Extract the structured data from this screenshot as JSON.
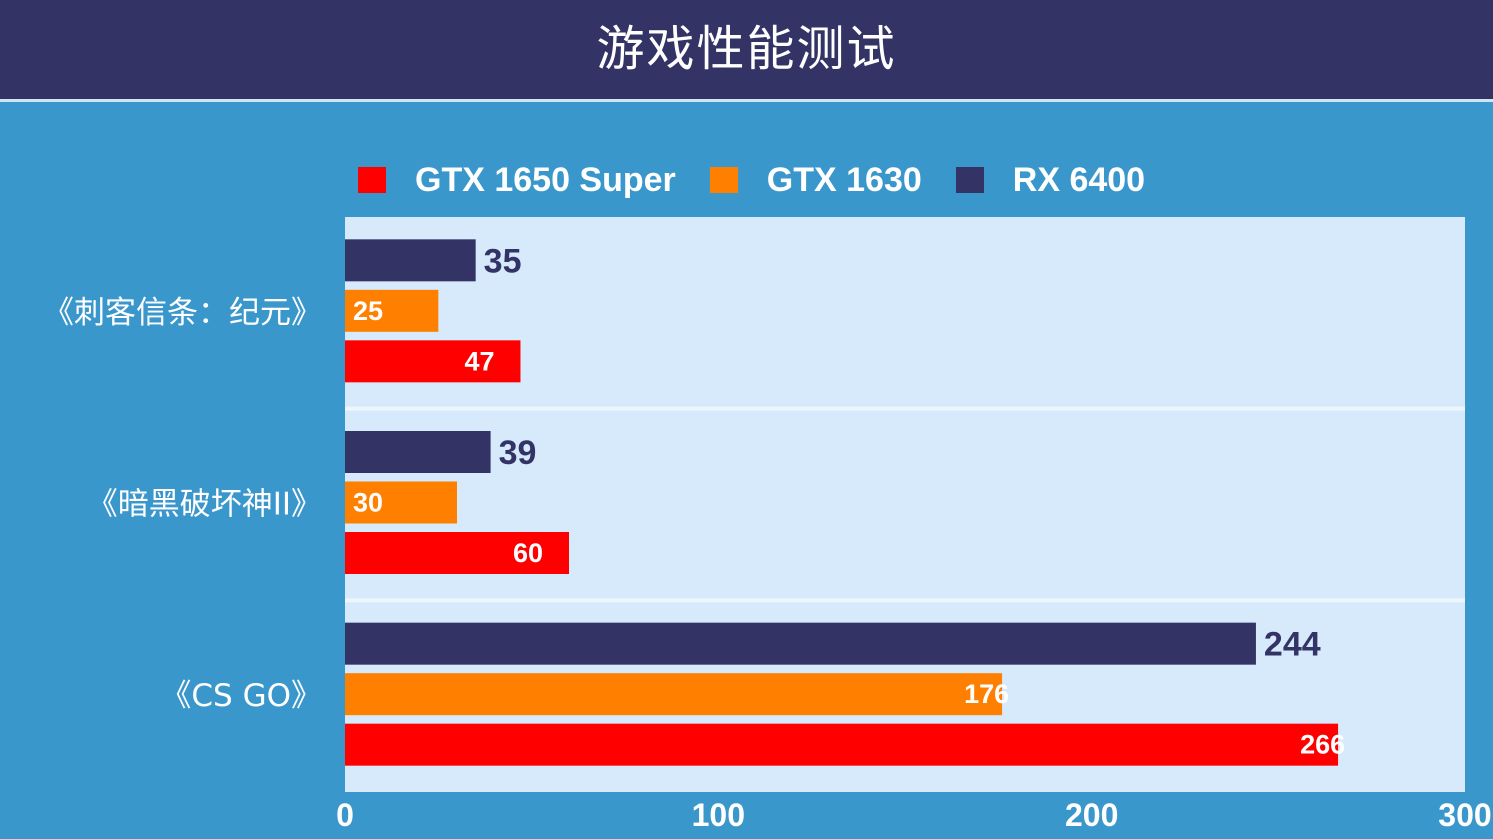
{
  "header": {
    "title": "游戏性能测试"
  },
  "colors": {
    "GTX 1650 Super": "#ff0000",
    "GTX 1630": "#ff8000",
    "RX 6400": "#333366"
  },
  "chart_data": {
    "type": "bar",
    "orientation": "horizontal",
    "categories": [
      "《刺客信条：纪元》",
      "《暗黑破坏神II》",
      "《CS GO》"
    ],
    "series": [
      {
        "name": "GTX 1650 Super",
        "values": [
          47,
          60,
          266
        ]
      },
      {
        "name": "GTX 1630",
        "values": [
          25,
          30,
          176
        ]
      },
      {
        "name": "RX 6400",
        "values": [
          35,
          39,
          244
        ]
      }
    ],
    "xlim": [
      0,
      300
    ],
    "ticks": [
      0,
      100,
      200,
      300
    ],
    "legend": [
      "GTX 1650 Super",
      "GTX 1630",
      "RX 6400"
    ],
    "legend_position": "top",
    "grid": false
  }
}
